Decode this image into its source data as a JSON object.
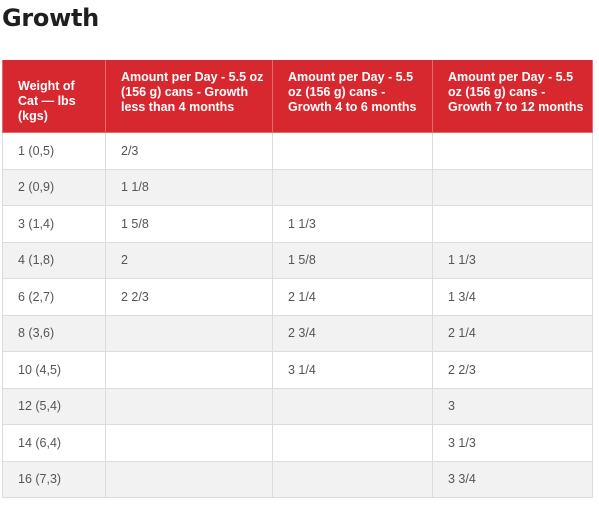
{
  "title": "Growth",
  "table": {
    "headers": [
      "Weight of Cat — lbs (kgs)",
      "Amount per Day - 5.5 oz (156 g) cans - Growth less than 4 months",
      "Amount per Day - 5.5 oz (156 g) cans - Growth 4 to 6 months",
      "Amount per Day - 5.5 oz (156 g) cans - Growth 7 to 12 months"
    ],
    "rows": [
      [
        "1 (0,5)",
        "2/3",
        "",
        ""
      ],
      [
        "2 (0,9)",
        "1 1/8",
        "",
        ""
      ],
      [
        "3 (1,4)",
        "1 5/8",
        "1 1/3",
        ""
      ],
      [
        "4 (1,8)",
        "2",
        "1 5/8",
        "1 1/3"
      ],
      [
        "6 (2,7)",
        "2 2/3",
        "2 1/4",
        "1 3/4"
      ],
      [
        "8 (3,6)",
        "",
        "2 3/4",
        "2 1/4"
      ],
      [
        "10 (4,5)",
        "",
        "3 1/4",
        "2 2/3"
      ],
      [
        "12 (5,4)",
        "",
        "",
        "3"
      ],
      [
        "14 (6,4)",
        "",
        "",
        "3 1/3"
      ],
      [
        "16 (7,3)",
        "",
        "",
        "3 3/4"
      ]
    ]
  },
  "colors": {
    "header_background": "#d7282f",
    "header_text": "#ffffff",
    "stripe": "#f2f2f2"
  }
}
